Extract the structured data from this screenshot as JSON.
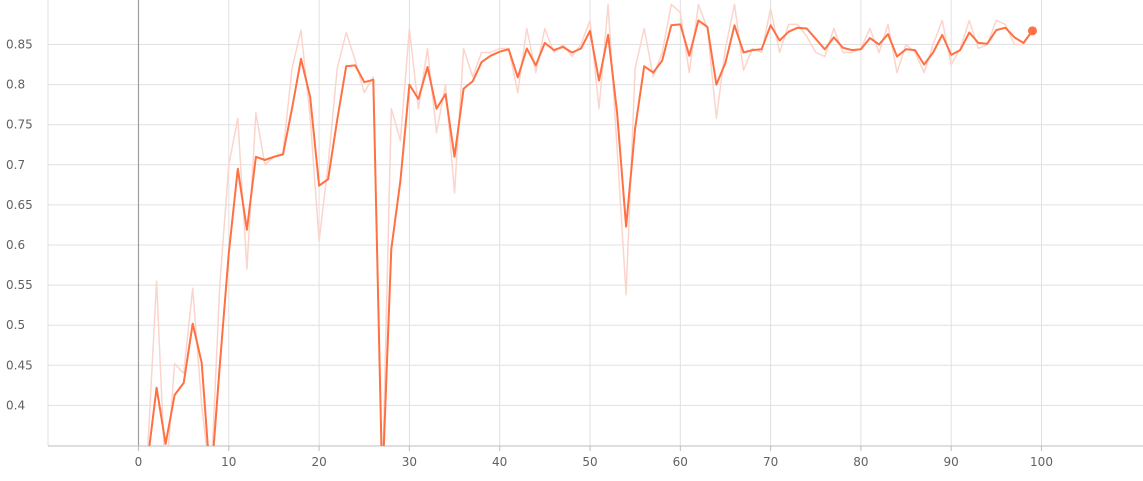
{
  "chart_data": {
    "type": "line",
    "title": "",
    "xlabel": "",
    "ylabel": "",
    "xlim": [
      -10,
      109
    ],
    "ylim": [
      0.35,
      0.9
    ],
    "grid": true,
    "legend": "none",
    "x_ticks": [
      0,
      10,
      20,
      30,
      40,
      50,
      60,
      70,
      80,
      90,
      100
    ],
    "x_tick_labels": [
      "0",
      "10",
      "20",
      "30",
      "40",
      "50",
      "60",
      "70",
      "80",
      "90",
      "100"
    ],
    "y_ticks": [
      0.4,
      0.45,
      0.5,
      0.55,
      0.6,
      0.65,
      0.7,
      0.75,
      0.8,
      0.85
    ],
    "y_tick_labels": [
      "0.4",
      "0.45",
      "0.5",
      "0.55",
      "0.6",
      "0.65",
      "0.7",
      "0.75",
      "0.8",
      "0.85"
    ],
    "series": [
      {
        "role": "raw",
        "color": "#fbd5cc",
        "points": [
          [
            0,
            0.3
          ],
          [
            1,
            0.34
          ],
          [
            2,
            0.555
          ],
          [
            3,
            0.3
          ],
          [
            4,
            0.452
          ],
          [
            5,
            0.44
          ],
          [
            6,
            0.546
          ],
          [
            7,
            0.4
          ],
          [
            8,
            0.3
          ],
          [
            9,
            0.55
          ],
          [
            10,
            0.7
          ],
          [
            11,
            0.758
          ],
          [
            12,
            0.57
          ],
          [
            13,
            0.765
          ],
          [
            14,
            0.7
          ],
          [
            15,
            0.71
          ],
          [
            16,
            0.715
          ],
          [
            17,
            0.82
          ],
          [
            18,
            0.868
          ],
          [
            19,
            0.76
          ],
          [
            20,
            0.605
          ],
          [
            21,
            0.7
          ],
          [
            22,
            0.82
          ],
          [
            23,
            0.865
          ],
          [
            24,
            0.83
          ],
          [
            25,
            0.79
          ],
          [
            26,
            0.81
          ],
          [
            27,
            0.3
          ],
          [
            28,
            0.77
          ],
          [
            29,
            0.73
          ],
          [
            30,
            0.87
          ],
          [
            31,
            0.77
          ],
          [
            32,
            0.845
          ],
          [
            33,
            0.74
          ],
          [
            34,
            0.8
          ],
          [
            35,
            0.665
          ],
          [
            36,
            0.845
          ],
          [
            37,
            0.81
          ],
          [
            38,
            0.84
          ],
          [
            39,
            0.84
          ],
          [
            40,
            0.845
          ],
          [
            41,
            0.845
          ],
          [
            42,
            0.79
          ],
          [
            43,
            0.87
          ],
          [
            44,
            0.815
          ],
          [
            45,
            0.87
          ],
          [
            46,
            0.84
          ],
          [
            47,
            0.85
          ],
          [
            48,
            0.835
          ],
          [
            49,
            0.85
          ],
          [
            50,
            0.88
          ],
          [
            51,
            0.77
          ],
          [
            52,
            0.9
          ],
          [
            53,
            0.72
          ],
          [
            54,
            0.538
          ],
          [
            55,
            0.82
          ],
          [
            56,
            0.87
          ],
          [
            57,
            0.81
          ],
          [
            58,
            0.84
          ],
          [
            59,
            0.9
          ],
          [
            60,
            0.89
          ],
          [
            61,
            0.815
          ],
          [
            62,
            0.9
          ],
          [
            63,
            0.87
          ],
          [
            64,
            0.758
          ],
          [
            65,
            0.845
          ],
          [
            66,
            0.9
          ],
          [
            67,
            0.818
          ],
          [
            68,
            0.845
          ],
          [
            69,
            0.84
          ],
          [
            70,
            0.895
          ],
          [
            71,
            0.84
          ],
          [
            72,
            0.875
          ],
          [
            73,
            0.875
          ],
          [
            74,
            0.86
          ],
          [
            75,
            0.84
          ],
          [
            76,
            0.835
          ],
          [
            77,
            0.87
          ],
          [
            78,
            0.84
          ],
          [
            79,
            0.84
          ],
          [
            80,
            0.845
          ],
          [
            81,
            0.87
          ],
          [
            82,
            0.84
          ],
          [
            83,
            0.875
          ],
          [
            84,
            0.815
          ],
          [
            85,
            0.85
          ],
          [
            86,
            0.84
          ],
          [
            87,
            0.815
          ],
          [
            88,
            0.85
          ],
          [
            89,
            0.88
          ],
          [
            90,
            0.825
          ],
          [
            91,
            0.845
          ],
          [
            92,
            0.88
          ],
          [
            93,
            0.845
          ],
          [
            94,
            0.85
          ],
          [
            95,
            0.88
          ],
          [
            96,
            0.875
          ],
          [
            97,
            0.85
          ],
          [
            98,
            0.85
          ],
          [
            99,
            0.868
          ]
        ]
      },
      {
        "role": "smoothed",
        "color": "#ff7043",
        "points": [
          [
            0,
            0.3
          ],
          [
            1,
            0.33
          ],
          [
            2,
            0.422
          ],
          [
            3,
            0.352
          ],
          [
            4,
            0.413
          ],
          [
            5,
            0.428
          ],
          [
            6,
            0.502
          ],
          [
            7,
            0.453
          ],
          [
            8,
            0.3
          ],
          [
            9,
            0.45
          ],
          [
            10,
            0.59
          ],
          [
            11,
            0.695
          ],
          [
            12,
            0.619
          ],
          [
            13,
            0.71
          ],
          [
            14,
            0.706
          ],
          [
            15,
            0.71
          ],
          [
            16,
            0.713
          ],
          [
            17,
            0.77
          ],
          [
            18,
            0.832
          ],
          [
            19,
            0.785
          ],
          [
            20,
            0.674
          ],
          [
            21,
            0.682
          ],
          [
            22,
            0.756
          ],
          [
            23,
            0.823
          ],
          [
            24,
            0.824
          ],
          [
            25,
            0.803
          ],
          [
            26,
            0.806
          ],
          [
            27,
            0.3
          ],
          [
            28,
            0.595
          ],
          [
            29,
            0.68
          ],
          [
            30,
            0.8
          ],
          [
            31,
            0.782
          ],
          [
            32,
            0.822
          ],
          [
            33,
            0.77
          ],
          [
            34,
            0.788
          ],
          [
            35,
            0.71
          ],
          [
            36,
            0.795
          ],
          [
            37,
            0.804
          ],
          [
            38,
            0.828
          ],
          [
            39,
            0.836
          ],
          [
            40,
            0.841
          ],
          [
            41,
            0.844
          ],
          [
            42,
            0.809
          ],
          [
            43,
            0.845
          ],
          [
            44,
            0.824
          ],
          [
            45,
            0.852
          ],
          [
            46,
            0.843
          ],
          [
            47,
            0.847
          ],
          [
            48,
            0.84
          ],
          [
            49,
            0.845
          ],
          [
            50,
            0.867
          ],
          [
            51,
            0.805
          ],
          [
            52,
            0.862
          ],
          [
            53,
            0.765
          ],
          [
            54,
            0.623
          ],
          [
            55,
            0.745
          ],
          [
            56,
            0.823
          ],
          [
            57,
            0.815
          ],
          [
            58,
            0.83
          ],
          [
            59,
            0.874
          ],
          [
            60,
            0.875
          ],
          [
            61,
            0.836
          ],
          [
            62,
            0.88
          ],
          [
            63,
            0.872
          ],
          [
            64,
            0.8
          ],
          [
            65,
            0.827
          ],
          [
            66,
            0.874
          ],
          [
            67,
            0.84
          ],
          [
            68,
            0.843
          ],
          [
            69,
            0.844
          ],
          [
            70,
            0.874
          ],
          [
            71,
            0.855
          ],
          [
            72,
            0.866
          ],
          [
            73,
            0.871
          ],
          [
            74,
            0.87
          ],
          [
            75,
            0.857
          ],
          [
            76,
            0.844
          ],
          [
            77,
            0.859
          ],
          [
            78,
            0.846
          ],
          [
            79,
            0.843
          ],
          [
            80,
            0.844
          ],
          [
            81,
            0.858
          ],
          [
            82,
            0.85
          ],
          [
            83,
            0.863
          ],
          [
            84,
            0.835
          ],
          [
            85,
            0.844
          ],
          [
            86,
            0.843
          ],
          [
            87,
            0.825
          ],
          [
            88,
            0.84
          ],
          [
            89,
            0.862
          ],
          [
            90,
            0.837
          ],
          [
            91,
            0.843
          ],
          [
            92,
            0.865
          ],
          [
            93,
            0.852
          ],
          [
            94,
            0.851
          ],
          [
            95,
            0.868
          ],
          [
            96,
            0.871
          ],
          [
            97,
            0.859
          ],
          [
            98,
            0.852
          ],
          [
            99,
            0.867
          ]
        ]
      }
    ],
    "last_point_marker": {
      "x": 99,
      "y": 0.867,
      "color": "#ff7043"
    }
  }
}
